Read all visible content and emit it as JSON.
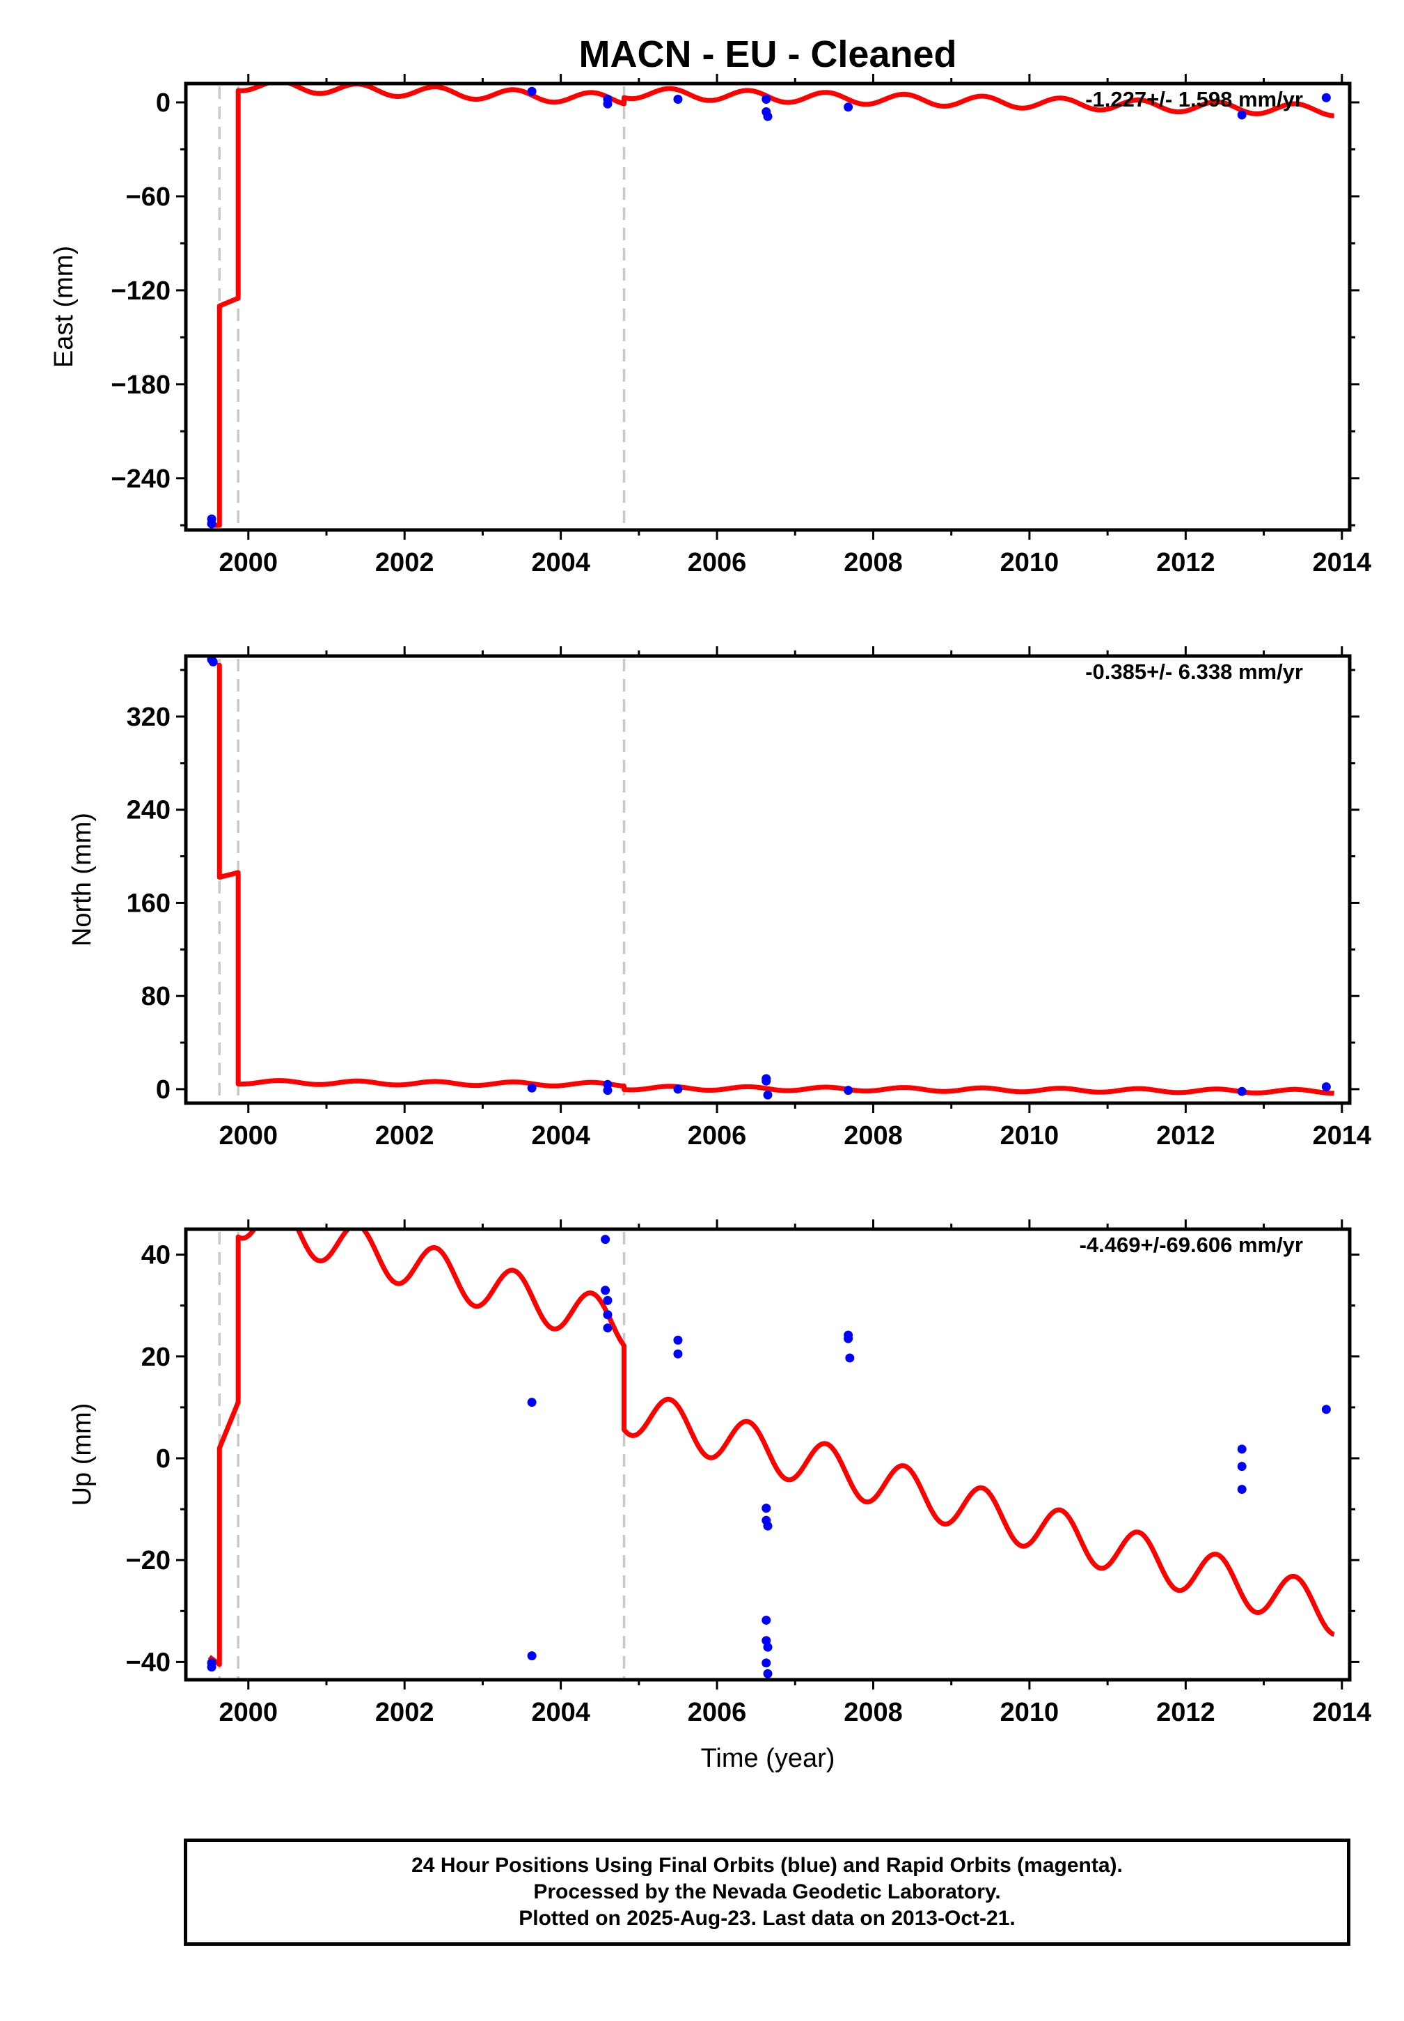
{
  "chart_data": {
    "type": "scatter",
    "title": "MACN  - EU - Cleaned",
    "xlabel": "Time (year)",
    "x_ticks": [
      "2000",
      "2002",
      "2004",
      "2006",
      "2008",
      "2010",
      "2012",
      "2014"
    ],
    "xlim": [
      1999.2,
      2014.1
    ],
    "break_lines": [
      1999.63,
      1999.87,
      2004.81
    ],
    "colors": {
      "model": "#ff0000",
      "points": "#0000ff",
      "breaks": "#c8c8c8"
    },
    "panels": [
      {
        "key": "east",
        "ylabel": "East (mm)",
        "ylim": [
          -273,
          12
        ],
        "yticks": [
          0,
          -60,
          -120,
          -180,
          -240
        ],
        "yticklabels": [
          "0",
          "−60",
          "−120",
          "−180",
          "−240"
        ],
        "rate_label": "-1.227+/- 1.598 mm/yr",
        "series": [
          {
            "name": "",
            "type": "points",
            "x": [
              1999.53,
              1999.53,
              2003.63,
              2004.6,
              2004.6,
              2005.5,
              2006.63,
              2006.63,
              2006.65,
              2007.68,
              2012.72,
              2013.8
            ],
            "y": [
              -266,
              -269,
              7,
              2,
              -1,
              2,
              2,
              -6,
              -9,
              -3,
              -8,
              3
            ]
          },
          {
            "name": "",
            "type": "model",
            "segments": [
              {
                "x0": 1999.5,
                "x1": 1999.63,
                "v0": -270,
                "v1": -270,
                "amp": 0
              },
              {
                "x0": 1999.63,
                "x1": 1999.87,
                "v0": -130,
                "v1": -125,
                "amp": 0
              },
              {
                "x0": 1999.87,
                "x1": 2004.81,
                "v0": 11,
                "v1": 2,
                "amp": 3.5
              },
              {
                "x0": 2004.81,
                "x1": 2013.9,
                "v0": 6,
                "v1": -5,
                "amp": 3.5
              }
            ]
          }
        ]
      },
      {
        "key": "north",
        "ylabel": "North (mm)",
        "ylim": [
          -12,
          372
        ],
        "yticks": [
          0,
          80,
          160,
          240,
          320
        ],
        "yticklabels": [
          "0",
          "80",
          "160",
          "240",
          "320"
        ],
        "rate_label": "-0.385+/- 6.338 mm/yr",
        "series": [
          {
            "name": "",
            "type": "points",
            "x": [
              1999.53,
              1999.55,
              2003.63,
              2004.6,
              2004.6,
              2005.5,
              2006.63,
              2006.63,
              2006.65,
              2007.68,
              2012.72,
              2013.8
            ],
            "y": [
              369,
              367,
              1,
              4,
              -1,
              0,
              9,
              7,
              -5,
              -1,
              -2,
              2
            ]
          },
          {
            "name": "",
            "type": "model",
            "segments": [
              {
                "x0": 1999.6,
                "x1": 1999.63,
                "v0": 364,
                "v1": 364,
                "amp": 0
              },
              {
                "x0": 1999.63,
                "x1": 1999.87,
                "v0": 182,
                "v1": 186,
                "amp": 0
              },
              {
                "x0": 1999.87,
                "x1": 2004.81,
                "v0": 6,
                "v1": 4,
                "amp": 1.6
              },
              {
                "x0": 2004.81,
                "x1": 2013.9,
                "v0": 1,
                "v1": -2,
                "amp": 1.6
              }
            ]
          }
        ]
      },
      {
        "key": "up",
        "ylabel": "Up (mm)",
        "ylim": [
          -43.5,
          45
        ],
        "yticks": [
          40,
          20,
          0,
          -20,
          -40
        ],
        "yticklabels": [
          "40",
          "20",
          "0",
          "−20",
          "−40"
        ],
        "rate_label": "-4.469+/-69.606 mm/yr",
        "series": [
          {
            "name": "",
            "type": "points",
            "x": [
              1999.53,
              1999.53,
              2003.63,
              2003.63,
              2004.57,
              2004.57,
              2004.6,
              2004.6,
              2004.6,
              2005.5,
              2005.5,
              2006.63,
              2006.63,
              2006.65,
              2006.63,
              2006.63,
              2006.65,
              2006.63,
              2006.65,
              2007.68,
              2007.68,
              2007.7,
              2012.72,
              2012.72,
              2012.72,
              2013.8
            ],
            "y": [
              -40.2,
              -41,
              11,
              -38.8,
              43,
              33,
              31,
              28.2,
              25.6,
              23.2,
              20.5,
              -9.8,
              -12.2,
              -13.3,
              -31.8,
              -35.8,
              -37.1,
              -40.2,
              -42.3,
              24.2,
              23.5,
              19.7,
              1.8,
              -1.6,
              -6.1,
              9.6
            ]
          },
          {
            "name": "",
            "type": "model",
            "segments": [
              {
                "x0": 1999.5,
                "x1": 1999.63,
                "v0": -39,
                "v1": -40.5,
                "amp": 0
              },
              {
                "x0": 1999.63,
                "x1": 1999.87,
                "v0": 2,
                "v1": 11,
                "amp": 0
              },
              {
                "x0": 1999.87,
                "x1": 2004.81,
                "v0": 48,
                "v1": 26,
                "amp": 4.6
              },
              {
                "x0": 2004.81,
                "x1": 2013.9,
                "v0": 9.5,
                "v1": -30,
                "amp": 4.6
              }
            ]
          }
        ]
      }
    ],
    "footer": [
      "24 Hour Positions Using Final Orbits (blue) and Rapid Orbits (magenta).",
      "Processed by the Nevada Geodetic Laboratory.",
      "Plotted on 2025-Aug-23. Last data on 2013-Oct-21."
    ]
  }
}
